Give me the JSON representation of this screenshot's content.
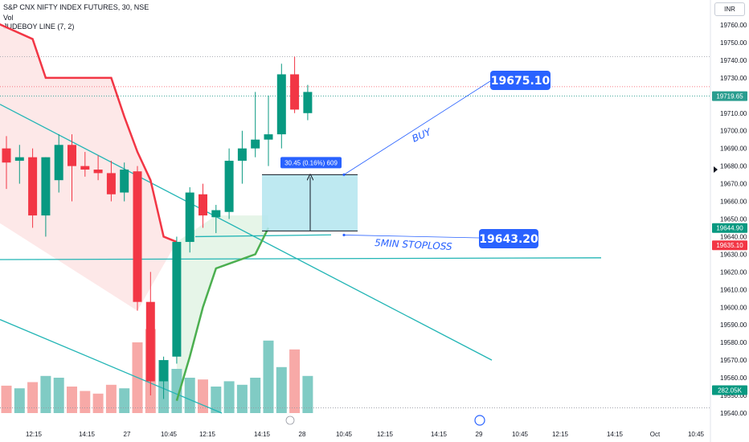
{
  "header": {
    "symbol": "S&P CNX NIFTY INDEX FUTURES, 30, NSE",
    "vol_label": "Vol",
    "indicator": "JUDEBOY LINE (7, 2)"
  },
  "currency": "INR",
  "chart_data": {
    "type": "candlestick",
    "timeframe": "30",
    "x_ticks": [
      "12:15",
      "14:15",
      "27",
      "10:45",
      "12:15",
      "14:15",
      "28",
      "10:45",
      "12:15",
      "14:15",
      "29",
      "10:45",
      "12:15",
      "14:15",
      "Oct",
      "10:45"
    ],
    "y_ticks": [
      19540,
      19550,
      19560,
      19570,
      19580,
      19590,
      19600,
      19610,
      19620,
      19630,
      19640,
      19650,
      19660,
      19670,
      19680,
      19690,
      19700,
      19710,
      19720,
      19730,
      19740,
      19750,
      19760
    ],
    "ylim": [
      19537,
      19768
    ],
    "candles": [
      {
        "o": 19690,
        "h": 19697,
        "l": 19667,
        "c": 19682,
        "v": 0.31
      },
      {
        "o": 19683,
        "h": 19692,
        "l": 19670,
        "c": 19685,
        "v": 0.28
      },
      {
        "o": 19685,
        "h": 19690,
        "l": 19645,
        "c": 19652,
        "v": 0.35
      },
      {
        "o": 19652,
        "h": 19685,
        "l": 19640,
        "c": 19685,
        "v": 0.42
      },
      {
        "o": 19672,
        "h": 19698,
        "l": 19665,
        "c": 19692,
        "v": 0.4
      },
      {
        "o": 19692,
        "h": 19698,
        "l": 19660,
        "c": 19680,
        "v": 0.3
      },
      {
        "o": 19680,
        "h": 19688,
        "l": 19674,
        "c": 19678,
        "v": 0.25
      },
      {
        "o": 19678,
        "h": 19686,
        "l": 19672,
        "c": 19676,
        "v": 0.22
      },
      {
        "o": 19676,
        "h": 19683,
        "l": 19660,
        "c": 19664,
        "v": 0.32
      },
      {
        "o": 19665,
        "h": 19682,
        "l": 19660,
        "c": 19678,
        "v": 0.28
      },
      {
        "o": 19677,
        "h": 19680,
        "l": 19598,
        "c": 19603,
        "v": 0.8
      },
      {
        "o": 19603,
        "h": 19620,
        "l": 19550,
        "c": 19558,
        "v": 0.95
      },
      {
        "o": 19558,
        "h": 19572,
        "l": 19548,
        "c": 19570,
        "v": 0.6
      },
      {
        "o": 19572,
        "h": 19640,
        "l": 19568,
        "c": 19637,
        "v": 0.5
      },
      {
        "o": 19637,
        "h": 19668,
        "l": 19631,
        "c": 19665,
        "v": 0.4
      },
      {
        "o": 19664,
        "h": 19670,
        "l": 19645,
        "c": 19652,
        "v": 0.38
      },
      {
        "o": 19651,
        "h": 19658,
        "l": 19642,
        "c": 19655,
        "v": 0.3
      },
      {
        "o": 19654,
        "h": 19690,
        "l": 19650,
        "c": 19683,
        "v": 0.36
      },
      {
        "o": 19683,
        "h": 19700,
        "l": 19670,
        "c": 19690,
        "v": 0.32
      },
      {
        "o": 19690,
        "h": 19722,
        "l": 19685,
        "c": 19695,
        "v": 0.4
      },
      {
        "o": 19695,
        "h": 19720,
        "l": 19680,
        "c": 19698,
        "v": 0.82
      },
      {
        "o": 19698,
        "h": 19738,
        "l": 19690,
        "c": 19732,
        "v": 0.52
      },
      {
        "o": 19732,
        "h": 19742,
        "l": 19710,
        "c": 19712,
        "v": 0.72
      },
      {
        "o": 19710,
        "h": 19726,
        "l": 19706,
        "c": 19722,
        "v": 0.42
      }
    ],
    "price_labels": [
      {
        "value": "19719.65",
        "price": 19719.65,
        "color": "#2a9d8f",
        "style": "fill"
      },
      {
        "value": "19644.90",
        "price": 19644.9,
        "color": "#089981",
        "style": "fill"
      },
      {
        "value": "19635.10",
        "price": 19635.1,
        "color": "#f23645",
        "style": "fill"
      },
      {
        "value": "282.05K",
        "price": 19553,
        "color": "#089981",
        "style": "fill"
      }
    ],
    "measure_label": "30.45 (0.16%) 609",
    "buy_price": "19675.10",
    "stop_price": "19643.20",
    "buy_note": "BUY",
    "stop_note": "5MIN STOPLOSS",
    "colors": {
      "up": "#089981",
      "down": "#f23645",
      "vol_up": "#80cbc4",
      "vol_down": "#f7a9a7",
      "accent": "#2962ff",
      "trendline": "#22b5b5"
    }
  }
}
